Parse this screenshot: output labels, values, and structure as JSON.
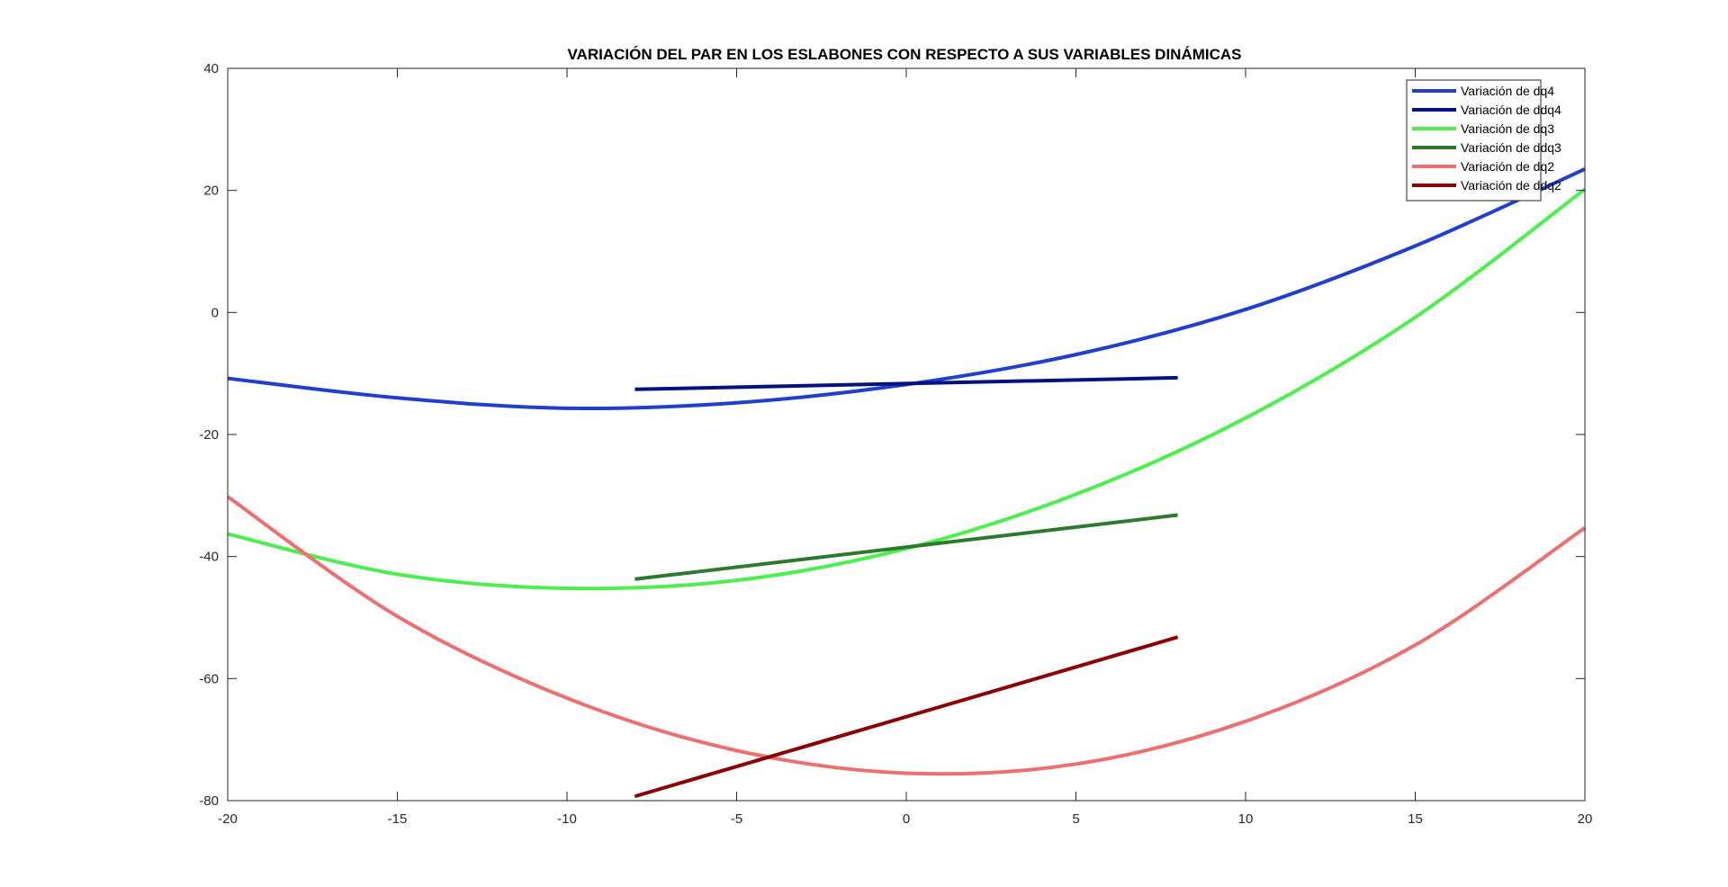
{
  "chart_data": {
    "type": "line",
    "title": "VARIACIÓN DEL PAR EN LOS ESLABONES CON RESPECTO A SUS VARIABLES DINÁMICAS",
    "xlabel": "",
    "ylabel": "",
    "xlim": [
      -20,
      20
    ],
    "ylim": [
      -80,
      40
    ],
    "xticks": [
      -20,
      -15,
      -10,
      -5,
      0,
      5,
      10,
      15,
      20
    ],
    "yticks": [
      -80,
      -60,
      -40,
      -20,
      0,
      20,
      40
    ],
    "xtick_labels": [
      "-20",
      "-15",
      "-10",
      "-5",
      "0",
      "5",
      "10",
      "15",
      "20"
    ],
    "ytick_labels": [
      "-80",
      "-60",
      "-40",
      "-20",
      "0",
      "20",
      "40"
    ],
    "grid": false,
    "legend_position": "top-right",
    "series": [
      {
        "name": "Variación de dq4",
        "color": "#1f3fcf",
        "x": [
          -20,
          -15,
          -10,
          -5,
          0,
          5,
          10,
          15,
          20
        ],
        "y": [
          -10.8,
          -14.0,
          -15.7,
          -14.8,
          -11.8,
          -6.9,
          0.5,
          10.9,
          23.5
        ]
      },
      {
        "name": "Variación de ddq4",
        "color": "#00137f",
        "x": [
          -8,
          8
        ],
        "y": [
          -12.6,
          -10.7
        ]
      },
      {
        "name": "Variación de dq3",
        "color": "#4cf04c",
        "x": [
          -20,
          -15,
          -10,
          -5,
          0,
          5,
          10,
          15,
          20
        ],
        "y": [
          -36.3,
          -42.9,
          -45.2,
          -43.9,
          -38.7,
          -29.8,
          -17.3,
          -0.8,
          20.2
        ]
      },
      {
        "name": "Variación de ddq3",
        "color": "#2c7a2c",
        "x": [
          -8,
          8
        ],
        "y": [
          -43.7,
          -33.2
        ]
      },
      {
        "name": "Variación de dq2",
        "color": "#ee6f6f",
        "x": [
          -20,
          -15,
          -10,
          -5,
          0,
          5,
          10,
          15,
          20
        ],
        "y": [
          -30.2,
          -49.8,
          -63.2,
          -71.8,
          -75.5,
          -74.0,
          -67.0,
          -54.5,
          -35.3
        ]
      },
      {
        "name": "Variación de ddq2",
        "color": "#8b0000",
        "x": [
          -8,
          8
        ],
        "y": [
          -79.3,
          -53.2
        ]
      }
    ]
  }
}
